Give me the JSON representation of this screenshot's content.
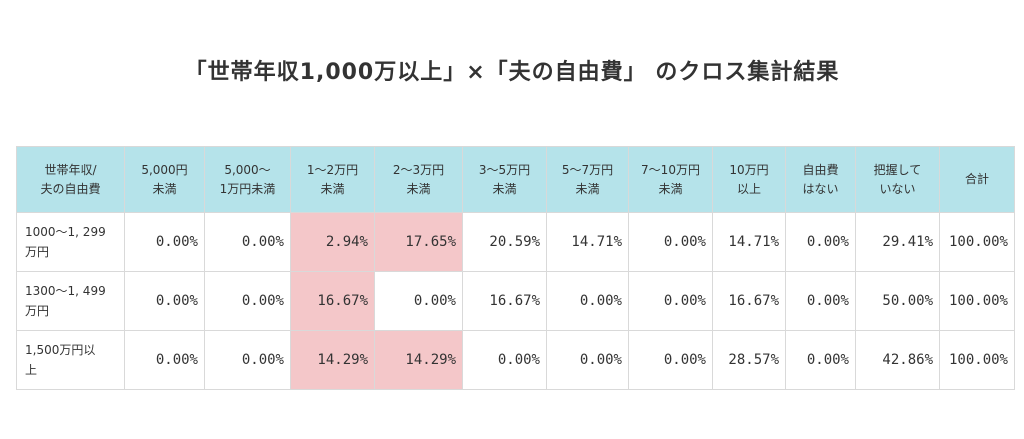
{
  "title": "「世帯年収1,000万以上」×「夫の自由費」 のクロス集計結果",
  "colors": {
    "header_bg": "#b5e3ea",
    "highlight": "#f4c7c9"
  },
  "table": {
    "headers": [
      [
        "世帯年収/",
        "夫の自由費"
      ],
      [
        "5,000円",
        "未満"
      ],
      [
        "5,000〜",
        "1万円未満"
      ],
      [
        "1〜2万円",
        "未満"
      ],
      [
        "2〜3万円",
        "未満"
      ],
      [
        "3〜5万円",
        "未満"
      ],
      [
        "5〜7万円",
        "未満"
      ],
      [
        "7〜10万円",
        "未満"
      ],
      [
        "10万円",
        "以上"
      ],
      [
        "自由費",
        "はない"
      ],
      [
        "把握して",
        "いない"
      ],
      [
        "合計"
      ]
    ],
    "rows": [
      {
        "label": [
          "1000〜1, 299",
          "万円"
        ],
        "cells": [
          "0.00%",
          "0.00%",
          "2.94%",
          "17.65%",
          "20.59%",
          "14.71%",
          "0.00%",
          "14.71%",
          "0.00%",
          "29.41%",
          "100.00%"
        ],
        "highlight": [
          false,
          false,
          true,
          true,
          false,
          false,
          false,
          false,
          false,
          false,
          false
        ]
      },
      {
        "label": [
          "1300〜1, 499",
          "万円"
        ],
        "cells": [
          "0.00%",
          "0.00%",
          "16.67%",
          "0.00%",
          "16.67%",
          "0.00%",
          "0.00%",
          "16.67%",
          "0.00%",
          "50.00%",
          "100.00%"
        ],
        "highlight": [
          false,
          false,
          true,
          false,
          false,
          false,
          false,
          false,
          false,
          false,
          false
        ]
      },
      {
        "label": [
          "1,500万円以",
          "上"
        ],
        "cells": [
          "0.00%",
          "0.00%",
          "14.29%",
          "14.29%",
          "0.00%",
          "0.00%",
          "0.00%",
          "28.57%",
          "0.00%",
          "42.86%",
          "100.00%"
        ],
        "highlight": [
          false,
          false,
          true,
          true,
          false,
          false,
          false,
          false,
          false,
          false,
          false
        ]
      }
    ]
  }
}
